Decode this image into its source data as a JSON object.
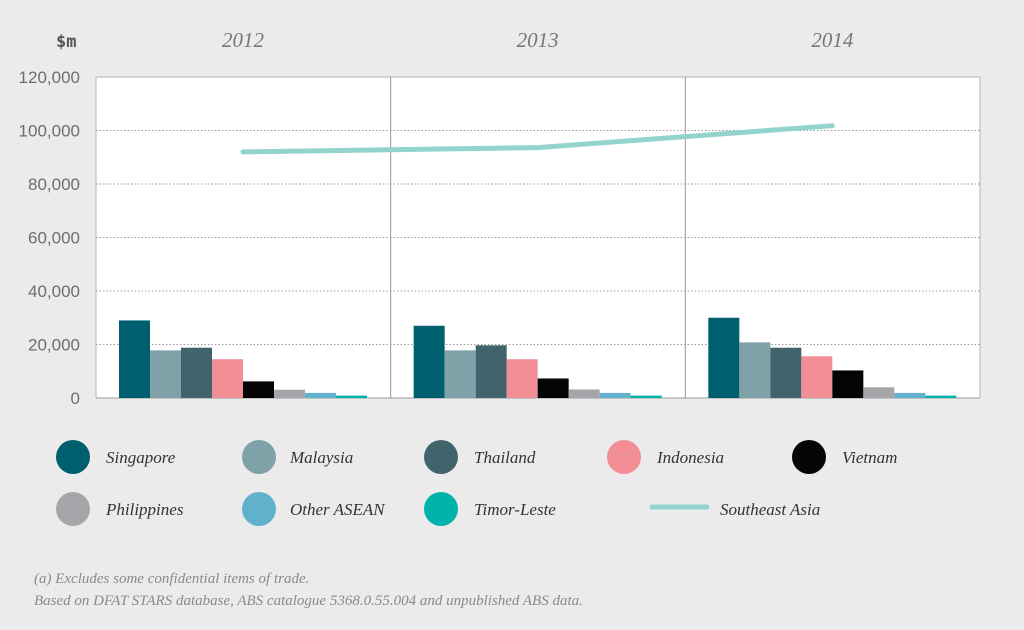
{
  "chart_data": {
    "type": "bar",
    "unit_label": "$m",
    "categories": [
      "2012",
      "2013",
      "2014"
    ],
    "ylim": [
      0,
      120000
    ],
    "yticks": [
      0,
      20000,
      40000,
      60000,
      80000,
      100000,
      120000
    ],
    "ytick_labels": [
      "0",
      "20,000",
      "40,000",
      "60,000",
      "80,000",
      "100,000",
      "120,000"
    ],
    "series": [
      {
        "name": "Singapore",
        "color": "#005f6e",
        "values": [
          29000,
          27000,
          30000
        ]
      },
      {
        "name": "Malaysia",
        "color": "#7fa2a8",
        "values": [
          17800,
          17800,
          20800
        ]
      },
      {
        "name": "Thailand",
        "color": "#41646c",
        "values": [
          18800,
          19700,
          18800
        ]
      },
      {
        "name": "Indonesia",
        "color": "#f28e96",
        "values": [
          14500,
          14500,
          15600
        ]
      },
      {
        "name": "Vietnam",
        "color": "#050505",
        "values": [
          6200,
          7300,
          10300
        ]
      },
      {
        "name": "Philippines",
        "color": "#a6a6aa",
        "values": [
          3100,
          3200,
          4000
        ]
      },
      {
        "name": "Other ASEAN",
        "color": "#5fb1cc",
        "values": [
          1900,
          1900,
          1900
        ]
      },
      {
        "name": "Timor-Leste",
        "color": "#00b3aa",
        "values": [
          900,
          900,
          900
        ]
      }
    ],
    "line": {
      "name": "Southeast Asia",
      "color": "#93d3cd",
      "values": [
        92000,
        93600,
        101800
      ]
    },
    "grid": true,
    "legend_position": "bottom"
  },
  "footnotes": [
    "(a) Excludes some confidential items of trade.",
    "Based on DFAT STARS database, ABS catalogue 5368.0.55.004 and unpublished ABS data."
  ]
}
